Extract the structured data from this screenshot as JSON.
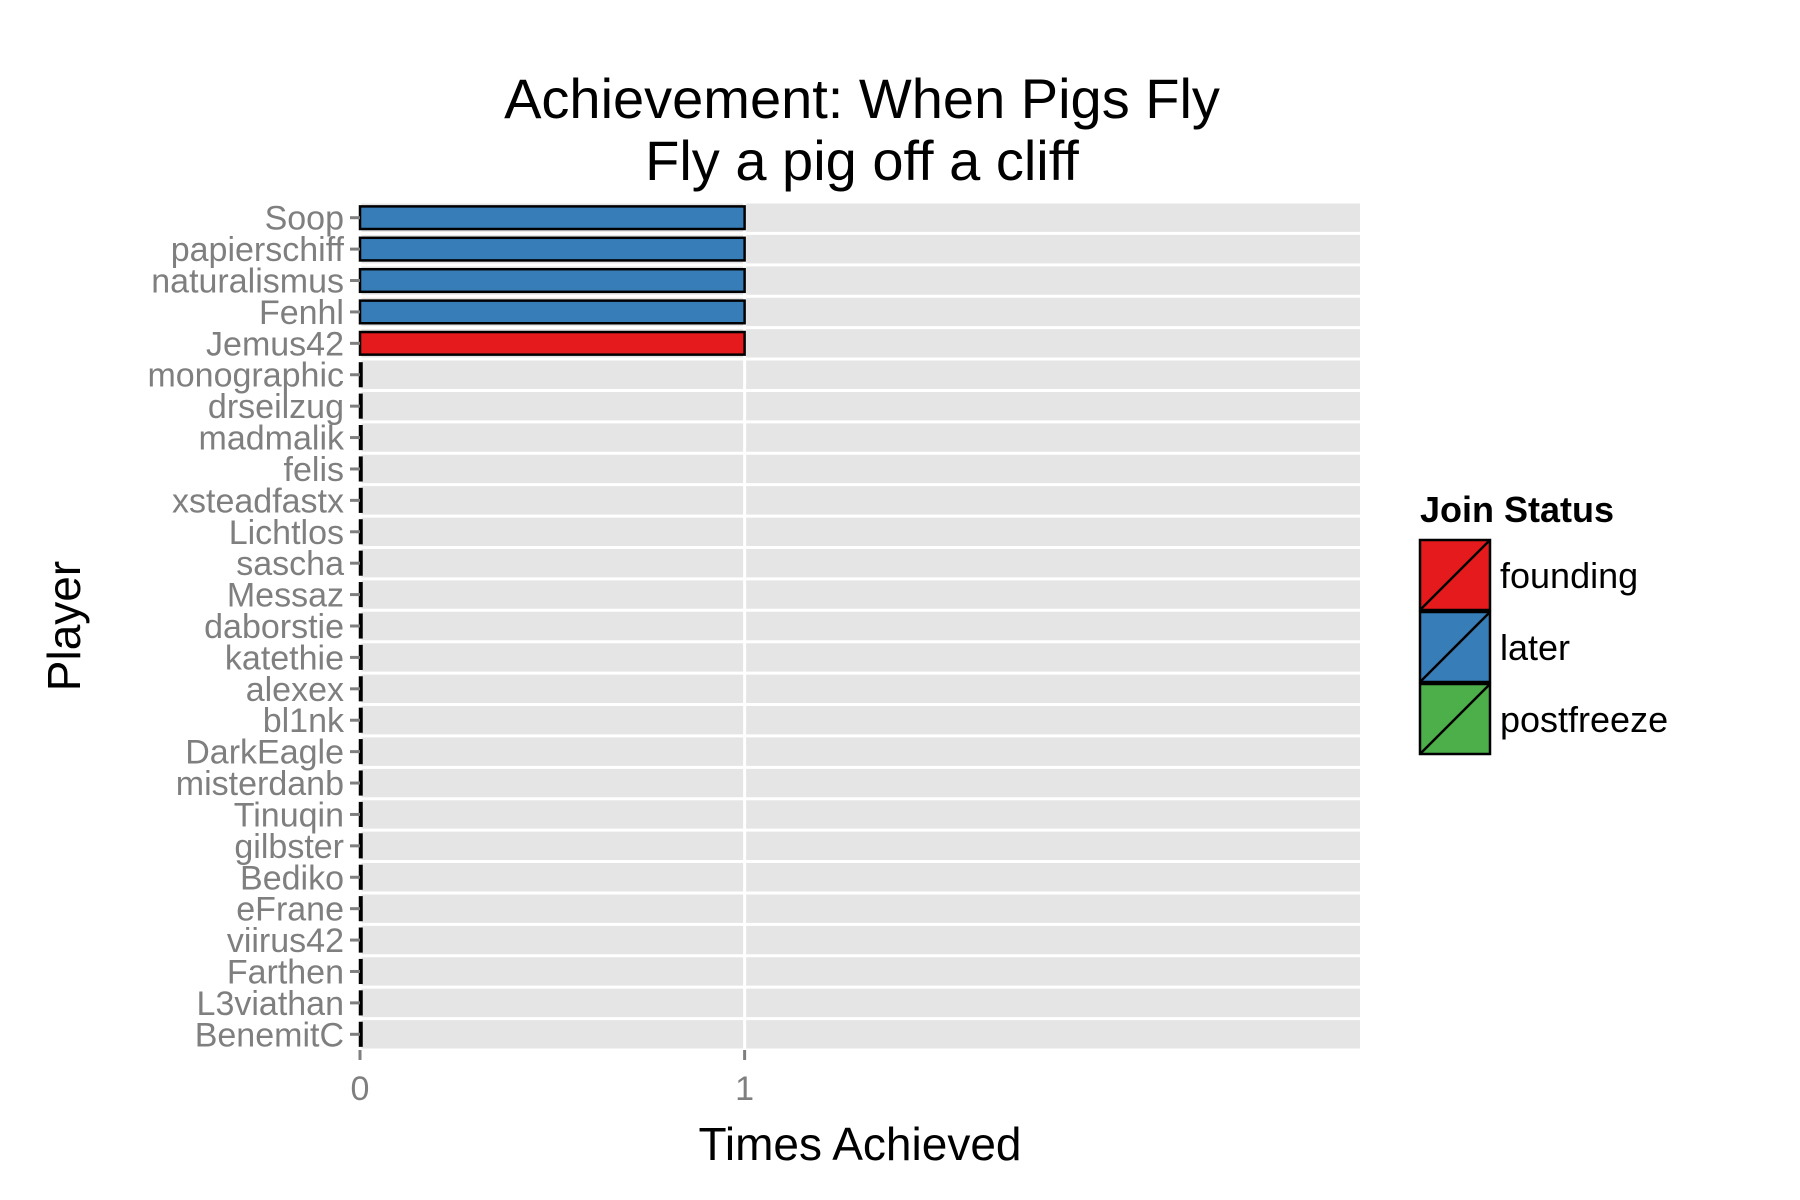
{
  "chart_data": {
    "type": "bar",
    "orientation": "horizontal",
    "title": "Achievement: When Pigs Fly",
    "subtitle": "Fly a pig off a cliff",
    "xlabel": "Times Achieved",
    "ylabel": "Player",
    "xlim": [
      0,
      2.6
    ],
    "x_ticks": [
      "0",
      "1"
    ],
    "grid": true,
    "legend_position": "right",
    "legend_title": "Join Status",
    "legend": [
      {
        "name": "founding",
        "color": "#e41a1c"
      },
      {
        "name": "later",
        "color": "#377eb8"
      },
      {
        "name": "postfreeze",
        "color": "#4daf4a"
      }
    ],
    "categories": [
      "Soop",
      "papierschiff",
      "naturalismus",
      "Fenhl",
      "Jemus42",
      "monographic",
      "drseilzug",
      "madmalik",
      "felis",
      "xsteadfastx",
      "Lichtlos",
      "sascha",
      "Messaz",
      "daborstie",
      "katethie",
      "alexex",
      "bl1nk",
      "DarkEagle",
      "misterdanb",
      "Tinuqin",
      "gilbster",
      "Bediko",
      "eFrane",
      "viirus42",
      "Farthen",
      "L3viathan",
      "BenemitC"
    ],
    "values": [
      1,
      1,
      1,
      1,
      1,
      0,
      0,
      0,
      0,
      0,
      0,
      0,
      0,
      0,
      0,
      0,
      0,
      0,
      0,
      0,
      0,
      0,
      0,
      0,
      0,
      0,
      0
    ],
    "status": [
      "later",
      "later",
      "later",
      "later",
      "founding",
      "founding",
      "founding",
      "founding",
      "founding",
      "founding",
      "founding",
      "founding",
      "founding",
      "founding",
      "founding",
      "later",
      "later",
      "later",
      "later",
      "later",
      "later",
      "later",
      "later",
      "later",
      "later",
      "later",
      "postfreeze"
    ]
  }
}
